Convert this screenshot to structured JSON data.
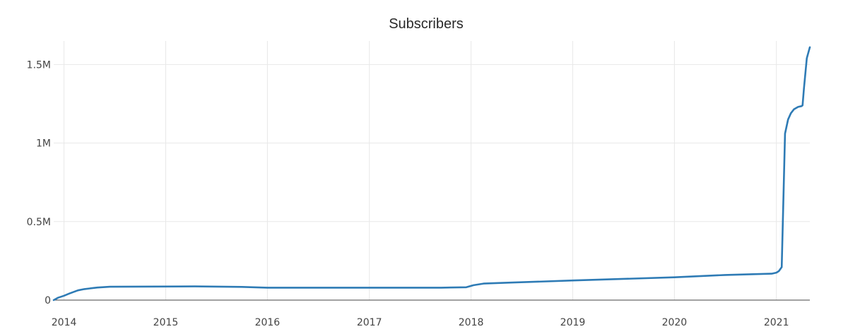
{
  "chart_data": {
    "type": "line",
    "title": "Subscribers",
    "xlabel": "",
    "ylabel": "",
    "grid": true,
    "x_ticks": [
      "2014",
      "2015",
      "2016",
      "2017",
      "2018",
      "2019",
      "2020",
      "2021"
    ],
    "y_ticks": [
      {
        "value": 0,
        "label": "0"
      },
      {
        "value": 500000,
        "label": "0.5M"
      },
      {
        "value": 1000000,
        "label": "1M"
      },
      {
        "value": 1500000,
        "label": "1.5M"
      }
    ],
    "xlim": [
      "2013-11-25",
      "2021-05-01"
    ],
    "ylim": [
      0,
      1650000
    ],
    "colors": {
      "line": "#2e7bb5",
      "grid": "#e8e8e8",
      "zero_line": "#444444"
    },
    "series": [
      {
        "x": [
          "2013-11-25",
          "2013-12-10",
          "2014-01-01",
          "2014-01-20",
          "2014-02-20",
          "2014-03-15",
          "2014-05-01",
          "2014-06-15",
          "2015-04-15",
          "2015-10-01",
          "2016-01-01",
          "2016-07-01",
          "2017-01-01",
          "2017-09-15",
          "2017-12-15",
          "2018-01-10",
          "2018-02-15",
          "2018-06-01",
          "2019-01-01",
          "2020-01-01",
          "2020-07-01",
          "2020-12-15",
          "2021-01-01",
          "2021-01-10",
          "2021-01-20",
          "2021-01-24",
          "2021-02-01",
          "2021-02-12",
          "2021-02-22",
          "2021-03-05",
          "2021-03-20",
          "2021-04-01",
          "2021-04-05",
          "2021-04-10",
          "2021-04-20",
          "2021-05-01"
        ],
        "y": [
          0,
          15000,
          28000,
          42000,
          62000,
          70000,
          80000,
          85000,
          87000,
          84000,
          79000,
          79000,
          79000,
          79000,
          82000,
          95000,
          105000,
          112000,
          125000,
          145000,
          160000,
          168000,
          175000,
          185000,
          210000,
          500000,
          1060000,
          1150000,
          1190000,
          1215000,
          1230000,
          1235000,
          1240000,
          1350000,
          1540000,
          1610000
        ]
      }
    ]
  }
}
